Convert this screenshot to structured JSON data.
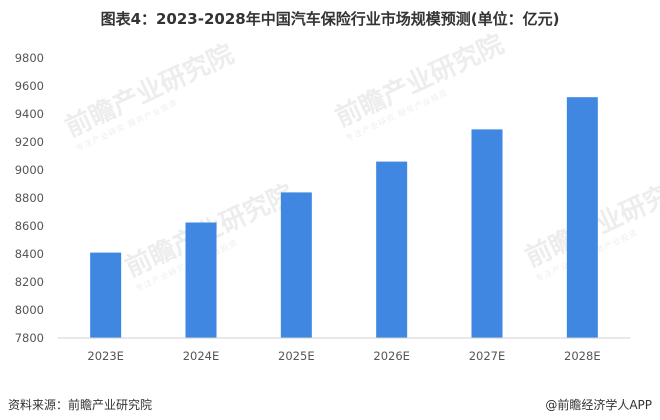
{
  "chart_data": {
    "type": "bar",
    "title": "图表4：2023-2028年中国汽车保险行业市场规模预测(单位：亿元)",
    "categories": [
      "2023E",
      "2024E",
      "2025E",
      "2026E",
      "2027E",
      "2028E"
    ],
    "values": [
      8410,
      8625,
      8840,
      9060,
      9290,
      9520
    ],
    "ylim": [
      7800,
      9800
    ],
    "yticks": [
      7800,
      8000,
      8200,
      8400,
      8600,
      8800,
      9000,
      9200,
      9400,
      9600,
      9800
    ],
    "xlabel": "",
    "ylabel": "",
    "grid": false,
    "bar_color": "#3f87e0"
  },
  "footer": {
    "source": "资料来源：前瞻产业研究院",
    "brand": "@前瞻经济学人APP"
  },
  "watermark": {
    "text": "前瞻产业研究院",
    "sub": "专注产业研究 服务产业投资"
  }
}
